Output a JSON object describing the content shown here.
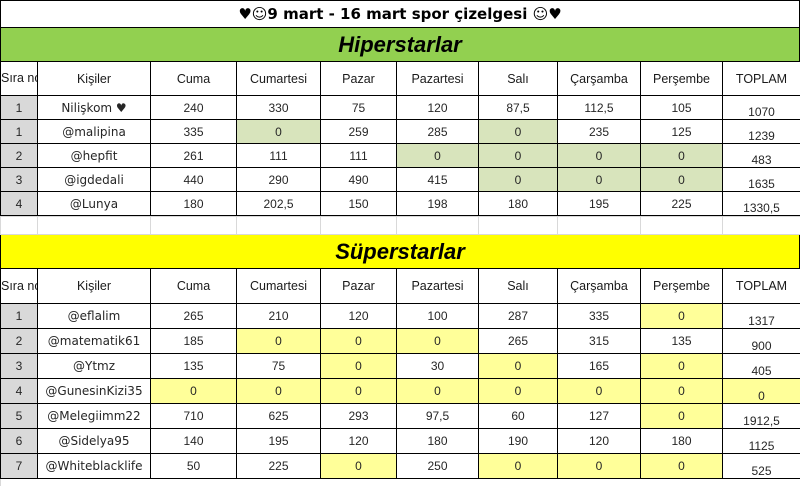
{
  "title": "♥☺9 mart - 16 mart spor çizelgesi ☺♥",
  "columns": {
    "no": "Sıra no",
    "name": "Kişiler",
    "days": [
      "Cuma",
      "Cumartesi",
      "Pazar",
      "Pazartesi",
      "Salı",
      "Çarşamba",
      "Perşembe"
    ],
    "total": "TOPLAM"
  },
  "colors": {
    "hiper_banner": "#92D050",
    "hiper_highlight": "#D8E4BC",
    "super_banner": "#FFFF00",
    "super_highlight": "#FFFF99",
    "row_number_bg": "#D9D9D9",
    "grid_border": "#000000"
  },
  "sections": [
    {
      "name": "Hiperstarlar",
      "banner_color": "#92D050",
      "highlight_color": "#D8E4BC",
      "rows": [
        {
          "no": "1",
          "name": "Nilişkom ♥",
          "values": [
            "240",
            "330",
            "75",
            "120",
            "87,5",
            "112,5",
            "105"
          ],
          "total": "1070",
          "highlights": [
            0,
            0,
            0,
            0,
            0,
            0,
            0,
            0
          ]
        },
        {
          "no": "1",
          "name": "@malipina",
          "values": [
            "335",
            "0",
            "259",
            "285",
            "0",
            "235",
            "125"
          ],
          "total": "1239",
          "highlights": [
            0,
            1,
            0,
            0,
            1,
            0,
            0,
            0
          ]
        },
        {
          "no": "2",
          "name": "@hepfit",
          "values": [
            "261",
            "111",
            "111",
            "0",
            "0",
            "0",
            "0"
          ],
          "total": "483",
          "highlights": [
            0,
            0,
            0,
            1,
            1,
            1,
            1,
            0
          ]
        },
        {
          "no": "3",
          "name": "@igdedali",
          "values": [
            "440",
            "290",
            "490",
            "415",
            "0",
            "0",
            "0"
          ],
          "total": "1635",
          "highlights": [
            0,
            0,
            0,
            0,
            1,
            1,
            1,
            0
          ]
        },
        {
          "no": "4",
          "name": "@Lunya",
          "values": [
            "180",
            "202,5",
            "150",
            "198",
            "180",
            "195",
            "225"
          ],
          "total": "1330,5",
          "highlights": [
            0,
            0,
            0,
            0,
            0,
            0,
            0,
            0
          ]
        }
      ]
    },
    {
      "name": "Süperstarlar",
      "banner_color": "#FFFF00",
      "highlight_color": "#FFFF99",
      "rows": [
        {
          "no": "1",
          "name": "@eflalim",
          "values": [
            "265",
            "210",
            "120",
            "100",
            "287",
            "335",
            "0"
          ],
          "total": "1317",
          "highlights": [
            0,
            0,
            0,
            0,
            0,
            0,
            1,
            0
          ]
        },
        {
          "no": "2",
          "name": "@matematik61",
          "values": [
            "185",
            "0",
            "0",
            "0",
            "265",
            "315",
            "135"
          ],
          "total": "900",
          "highlights": [
            0,
            1,
            1,
            1,
            0,
            0,
            0,
            0
          ]
        },
        {
          "no": "3",
          "name": "@Ytmz",
          "values": [
            "135",
            "75",
            "0",
            "30",
            "0",
            "165",
            "0"
          ],
          "total": "405",
          "highlights": [
            0,
            0,
            1,
            0,
            1,
            0,
            1,
            0
          ]
        },
        {
          "no": "4",
          "name": "@GunesinKizi35",
          "values": [
            "0",
            "0",
            "0",
            "0",
            "0",
            "0",
            "0"
          ],
          "total": "0",
          "highlights": [
            1,
            1,
            1,
            1,
            1,
            1,
            1,
            1
          ]
        },
        {
          "no": "5",
          "name": "@Melegiimm22",
          "values": [
            "710",
            "625",
            "293",
            "97,5",
            "60",
            "127",
            "0"
          ],
          "total": "1912,5",
          "highlights": [
            0,
            0,
            0,
            0,
            0,
            0,
            1,
            0
          ]
        },
        {
          "no": "6",
          "name": "@Sidelya95",
          "values": [
            "140",
            "195",
            "120",
            "180",
            "190",
            "120",
            "180"
          ],
          "total": "1125",
          "highlights": [
            0,
            0,
            0,
            0,
            0,
            0,
            0,
            0
          ]
        },
        {
          "no": "7",
          "name": "@Whiteblacklife",
          "values": [
            "50",
            "225",
            "0",
            "250",
            "0",
            "0",
            "0"
          ],
          "total": "525",
          "highlights": [
            0,
            0,
            1,
            0,
            1,
            1,
            1,
            0
          ]
        }
      ]
    }
  ]
}
